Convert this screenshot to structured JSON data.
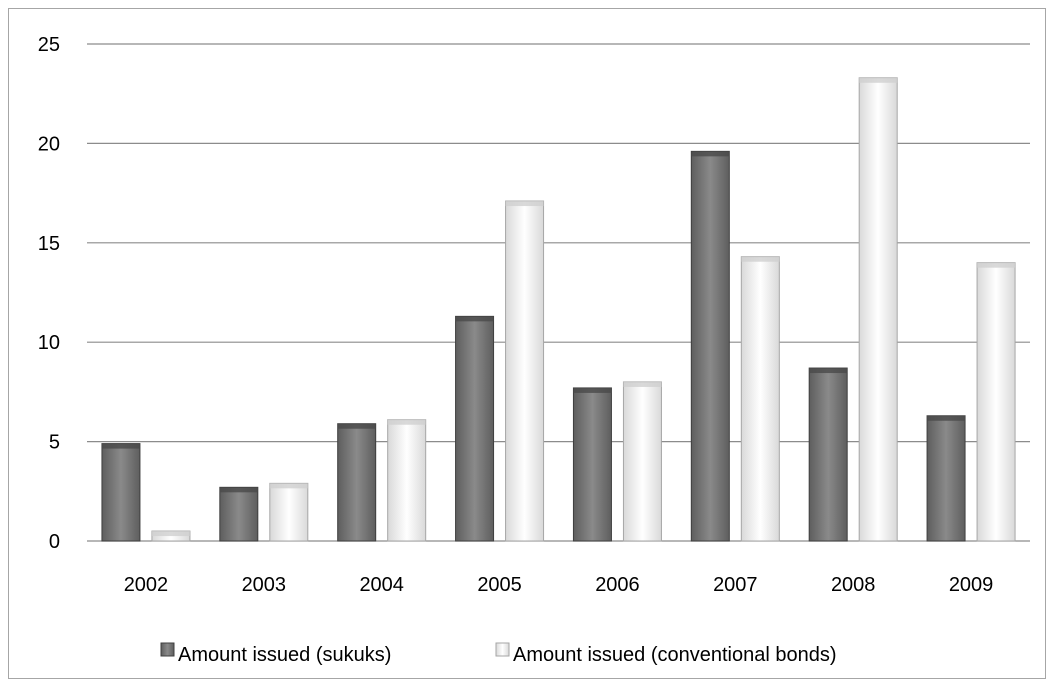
{
  "chart_data": {
    "type": "bar",
    "categories": [
      "2002",
      "2003",
      "2004",
      "2005",
      "2006",
      "2007",
      "2008",
      "2009"
    ],
    "series": [
      {
        "name": "Amount issued (sukuks)",
        "values": [
          4.9,
          2.7,
          5.9,
          11.3,
          7.7,
          19.6,
          8.7,
          6.3
        ],
        "color": "#7f7f7f"
      },
      {
        "name": "Amount issued (conventional bonds)",
        "values": [
          0.5,
          2.9,
          6.1,
          17.1,
          8.0,
          14.3,
          23.3,
          14.0
        ],
        "color": "#ffffff"
      }
    ],
    "ylim": [
      0,
      25
    ],
    "yticks": [
      0,
      5,
      10,
      15,
      20,
      25
    ],
    "grid": true,
    "legend": "bottom",
    "title": "",
    "xlabel": "",
    "ylabel": ""
  }
}
